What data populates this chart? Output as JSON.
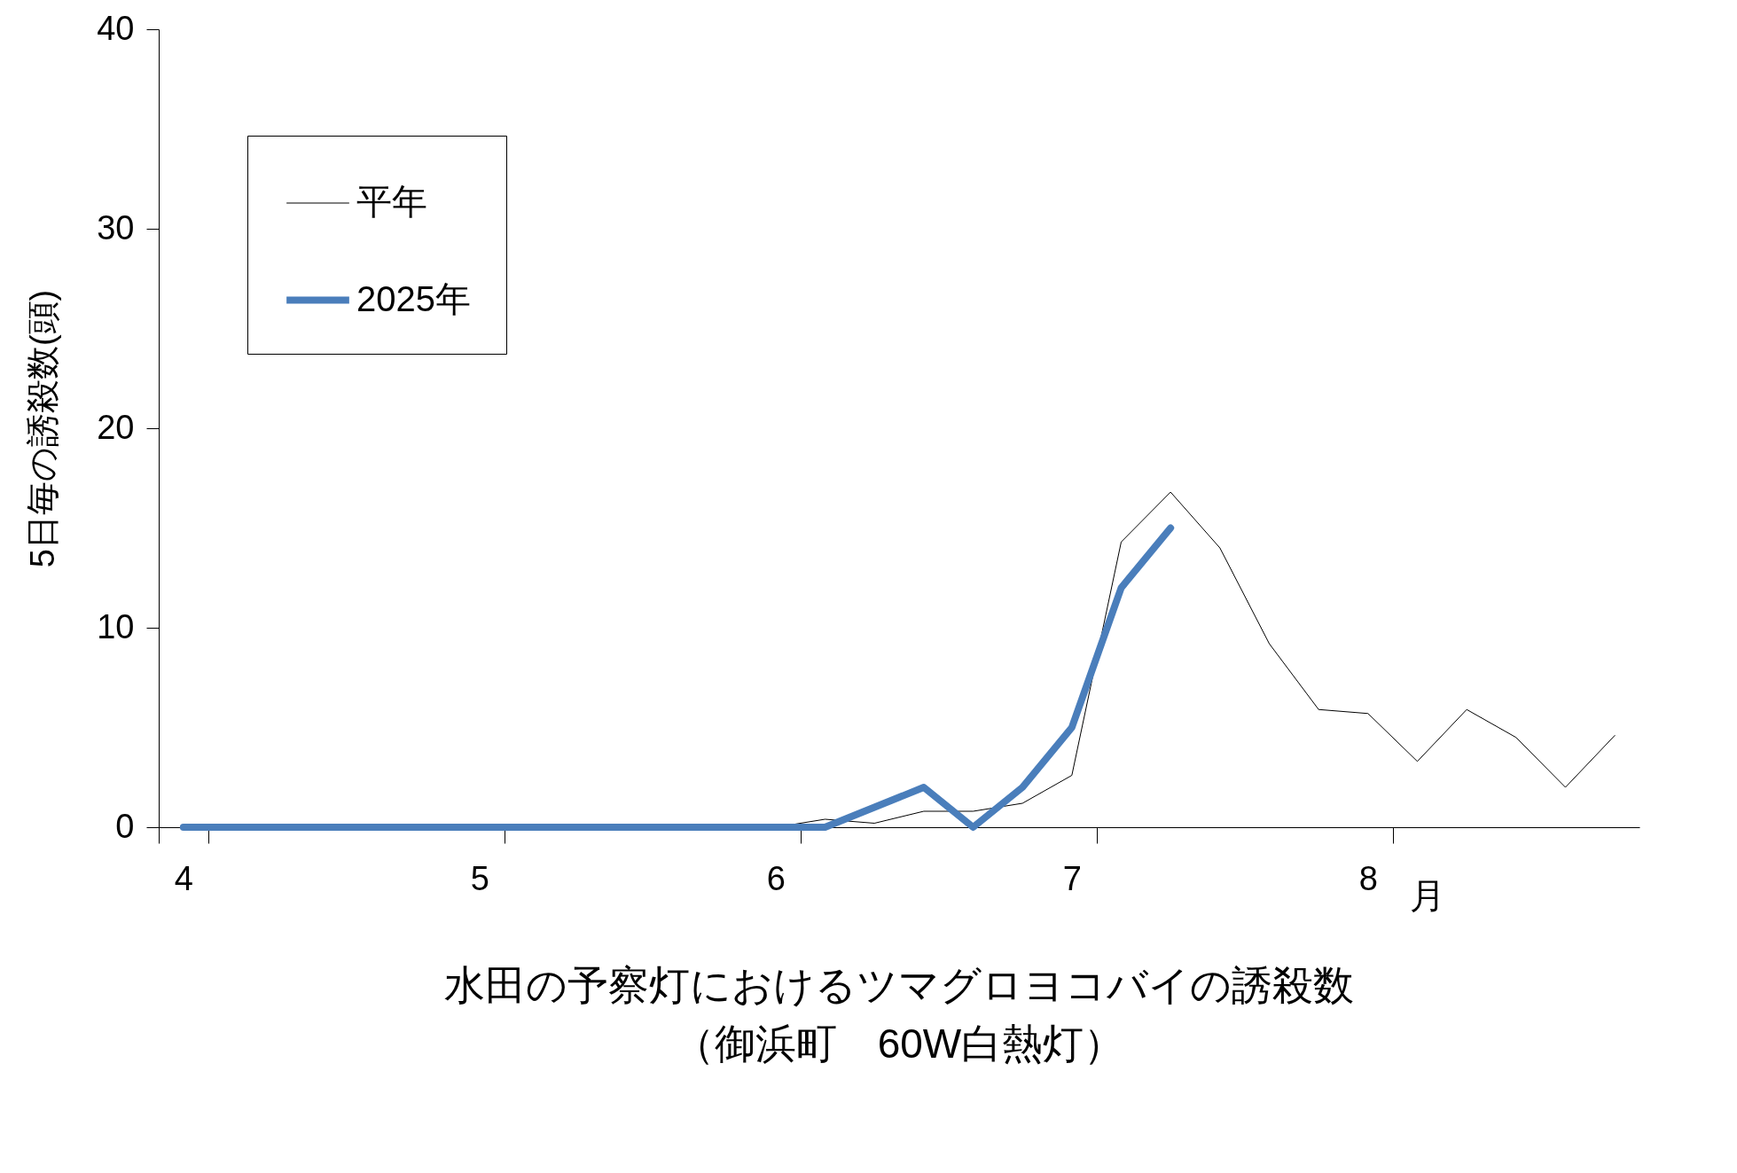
{
  "chart_data": {
    "type": "line",
    "title": "水田の予察灯におけるツマグロヨコバイの誘殺数",
    "subtitle": "（御浜町　60W白熱灯）",
    "xlabel": "月",
    "ylabel": "5日毎の誘殺数(頭)",
    "categories": [
      "4",
      null,
      null,
      null,
      null,
      null,
      "5",
      null,
      null,
      null,
      null,
      null,
      "6",
      null,
      null,
      null,
      null,
      null,
      "7",
      null,
      null,
      null,
      null,
      null,
      "8",
      null,
      null,
      null,
      null,
      null
    ],
    "series": [
      {
        "name": "平年",
        "color": "#000000",
        "values": [
          null,
          null,
          null,
          null,
          null,
          null,
          null,
          null,
          null,
          null,
          null,
          null,
          0,
          0.4,
          0.2,
          0.8,
          0.8,
          1.2,
          2.6,
          14.3,
          16.8,
          14.0,
          9.2,
          5.9,
          5.7,
          3.3,
          5.9,
          4.5,
          2.0,
          4.6
        ]
      },
      {
        "name": "2025年",
        "color": "#4a7ebb",
        "values": [
          0,
          0,
          0,
          0,
          0,
          0,
          0,
          0,
          0,
          0,
          0,
          0,
          0,
          0,
          1,
          2,
          0,
          2,
          5,
          12,
          15,
          null,
          null,
          null,
          null,
          null,
          null,
          null,
          null,
          null
        ]
      }
    ],
    "ylim": [
      0,
      40
    ],
    "yticks": [
      0,
      10,
      20,
      30,
      40
    ],
    "grid": false,
    "legend": "top left",
    "marker": "none",
    "line_style": "solid"
  }
}
